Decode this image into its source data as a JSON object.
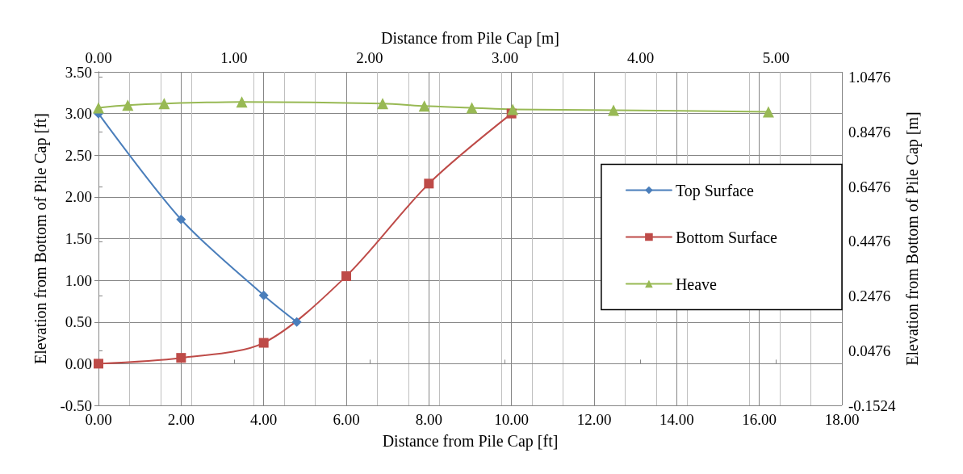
{
  "chart_data": {
    "type": "line",
    "xlabel": "Distance from Pile Cap [ft]",
    "ylabel": "Elevation from Bottom of Pile Cap [ft]",
    "x2label": "Distance from Pile Cap [m]",
    "y2label": "Elevation from Bottom of Pile Cap [m]",
    "xlim": [
      0,
      18
    ],
    "xticks": [
      {
        "value": 0,
        "label": "0.00"
      },
      {
        "value": 2,
        "label": "2.00"
      },
      {
        "value": 4,
        "label": "4.00"
      },
      {
        "value": 6,
        "label": "6.00"
      },
      {
        "value": 8,
        "label": "8.00"
      },
      {
        "value": 10,
        "label": "10.00"
      },
      {
        "value": 12,
        "label": "12.00"
      },
      {
        "value": 14,
        "label": "14.00"
      },
      {
        "value": 16,
        "label": "16.00"
      },
      {
        "value": 18,
        "label": "18.00"
      }
    ],
    "ylim": [
      -0.5,
      3.5
    ],
    "yticks": [
      {
        "value": -0.5,
        "label": "-0.50"
      },
      {
        "value": 0,
        "label": "0.00"
      },
      {
        "value": 0.5,
        "label": "0.50"
      },
      {
        "value": 1,
        "label": "1.00"
      },
      {
        "value": 1.5,
        "label": "1.50"
      },
      {
        "value": 2,
        "label": "2.00"
      },
      {
        "value": 2.5,
        "label": "2.50"
      },
      {
        "value": 3,
        "label": "3.00"
      },
      {
        "value": 3.5,
        "label": "3.50"
      }
    ],
    "x2lim": [
      0,
      5.486
    ],
    "x2ticks": [
      {
        "value": 0,
        "label": "0.00"
      },
      {
        "value": 1,
        "label": "1.00"
      },
      {
        "value": 2,
        "label": "2.00"
      },
      {
        "value": 3,
        "label": "3.00"
      },
      {
        "value": 4,
        "label": "4.00"
      },
      {
        "value": 5,
        "label": "5.00"
      }
    ],
    "y2lim": [
      -0.1524,
      1.0668
    ],
    "y2ticks": [
      -0.1524,
      0.0476,
      0.2476,
      0.4476,
      0.6476,
      0.8476,
      1.0476
    ],
    "grid": true,
    "legend": "right",
    "line_style": "solid",
    "series": [
      {
        "name": "Top Surface",
        "color": "#4a7ebb",
        "marker": "diamond",
        "x": [
          0,
          2,
          4,
          4.8
        ],
        "values": [
          3.0,
          1.73,
          0.82,
          0.5
        ]
      },
      {
        "name": "Bottom Surface",
        "color": "#be4b48",
        "marker": "square",
        "x": [
          0,
          2,
          4,
          6,
          8,
          10
        ],
        "values": [
          0,
          0.07,
          0.25,
          1.05,
          2.16,
          3.0
        ]
      },
      {
        "name": "Heave",
        "color": "#98b954",
        "marker": "triangle",
        "x": [
          0,
          0.71,
          1.59,
          3.47,
          6.88,
          7.89,
          9.04,
          10.03,
          12.47,
          16.22
        ],
        "values": [
          3.07,
          3.1,
          3.12,
          3.14,
          3.12,
          3.09,
          3.07,
          3.05,
          3.04,
          3.02
        ]
      }
    ]
  }
}
